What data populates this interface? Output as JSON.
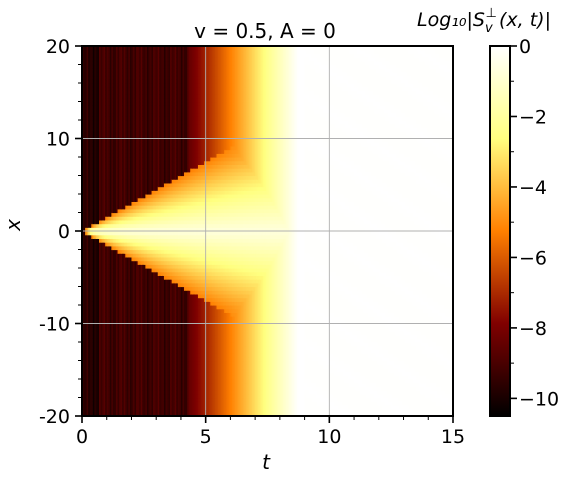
{
  "chart_data": {
    "type": "heatmap",
    "title": "v = 0.5, A = 0",
    "xlabel": "t",
    "ylabel": "x",
    "colorbar_title": "Log₁₀|S",
    "colorbar_title_sub": "v",
    "colorbar_title_sup": "⊥",
    "colorbar_title_tail": "(x, t)|",
    "colormap": "afmhot",
    "xlim": [
      0,
      15
    ],
    "ylim": [
      -20,
      20
    ],
    "clim": [
      -10.5,
      0
    ],
    "grid": true,
    "x_ticks": [
      {
        "value": 0,
        "label": "0"
      },
      {
        "value": 5,
        "label": "5"
      },
      {
        "value": 10,
        "label": "10"
      },
      {
        "value": 15,
        "label": "15"
      }
    ],
    "y_ticks": [
      {
        "value": 20,
        "label": "20"
      },
      {
        "value": 10,
        "label": "10"
      },
      {
        "value": 0,
        "label": "0"
      },
      {
        "value": -10,
        "label": "-10"
      },
      {
        "value": -20,
        "label": "-20"
      }
    ],
    "colorbar_ticks": [
      {
        "value": 0,
        "label": "0"
      },
      {
        "value": -2,
        "label": "−2"
      },
      {
        "value": -4,
        "label": "−4"
      },
      {
        "value": -6,
        "label": "−6"
      },
      {
        "value": -8,
        "label": "−8"
      },
      {
        "value": -10,
        "label": "−10"
      }
    ],
    "field_description": {
      "background_level": -9.2,
      "front_speed": 1.5,
      "saturation_start_t": 5.2,
      "saturation_end_t": 9.0,
      "final_level": 0
    }
  }
}
